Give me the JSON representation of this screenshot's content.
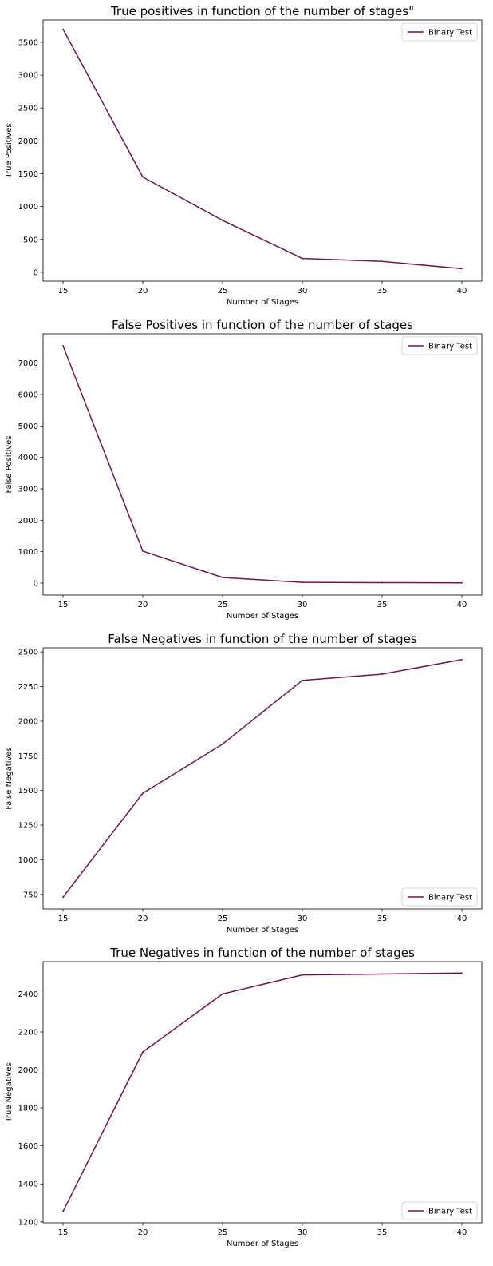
{
  "figure": {
    "line_color": "#6b1750",
    "axis_color": "#000000",
    "background": "#ffffff"
  },
  "chart_data": [
    {
      "type": "line",
      "title": "True positives in function of the number of stages\"",
      "xlabel": "Number of Stages",
      "ylabel": "True Positives",
      "x": [
        15,
        20,
        25,
        30,
        35,
        40
      ],
      "xticks": [
        15,
        20,
        25,
        30,
        35,
        40
      ],
      "yticks": [
        0,
        500,
        1000,
        1500,
        2000,
        2500,
        3000,
        3500
      ],
      "xlim": [
        13.75,
        41.25
      ],
      "ylim": [
        -135,
        3840
      ],
      "legend": "upper right",
      "grid": false,
      "series": [
        {
          "name": "Binary Test",
          "values": [
            3700,
            1450,
            790,
            210,
            165,
            55
          ]
        }
      ]
    },
    {
      "type": "line",
      "title": "False Positives in function of the number of stages",
      "xlabel": "Number of Stages",
      "ylabel": "False Positives",
      "x": [
        15,
        20,
        25,
        30,
        35,
        40
      ],
      "xticks": [
        15,
        20,
        25,
        30,
        35,
        40
      ],
      "yticks": [
        0,
        1000,
        2000,
        3000,
        4000,
        5000,
        6000,
        7000
      ],
      "xlim": [
        13.75,
        41.25
      ],
      "ylim": [
        -380,
        7930
      ],
      "legend": "upper right",
      "grid": false,
      "series": [
        {
          "name": "Binary Test",
          "values": [
            7550,
            1020,
            180,
            25,
            15,
            10
          ]
        }
      ]
    },
    {
      "type": "line",
      "title": "False Negatives in function of the number of stages",
      "xlabel": "Number of Stages",
      "ylabel": "False Negatives",
      "x": [
        15,
        20,
        25,
        30,
        35,
        40
      ],
      "xticks": [
        15,
        20,
        25,
        30,
        35,
        40
      ],
      "yticks": [
        750,
        1000,
        1250,
        1500,
        1750,
        2000,
        2250,
        2500
      ],
      "xlim": [
        13.75,
        41.25
      ],
      "ylim": [
        645,
        2530
      ],
      "legend": "lower right",
      "grid": false,
      "series": [
        {
          "name": "Binary Test",
          "values": [
            730,
            1480,
            1835,
            2295,
            2340,
            2445
          ]
        }
      ]
    },
    {
      "type": "line",
      "title": "True Negatives in function of the number of stages",
      "xlabel": "Number of Stages",
      "ylabel": "True Negatives",
      "x": [
        15,
        20,
        25,
        30,
        35,
        40
      ],
      "xticks": [
        15,
        20,
        25,
        30,
        35,
        40
      ],
      "yticks": [
        1200,
        1400,
        1600,
        1800,
        2000,
        2200,
        2400
      ],
      "xlim": [
        13.75,
        41.25
      ],
      "ylim": [
        1195,
        2570
      ],
      "legend": "lower right",
      "grid": false,
      "series": [
        {
          "name": "Binary Test",
          "values": [
            1255,
            2095,
            2400,
            2500,
            2505,
            2510
          ]
        }
      ]
    }
  ]
}
